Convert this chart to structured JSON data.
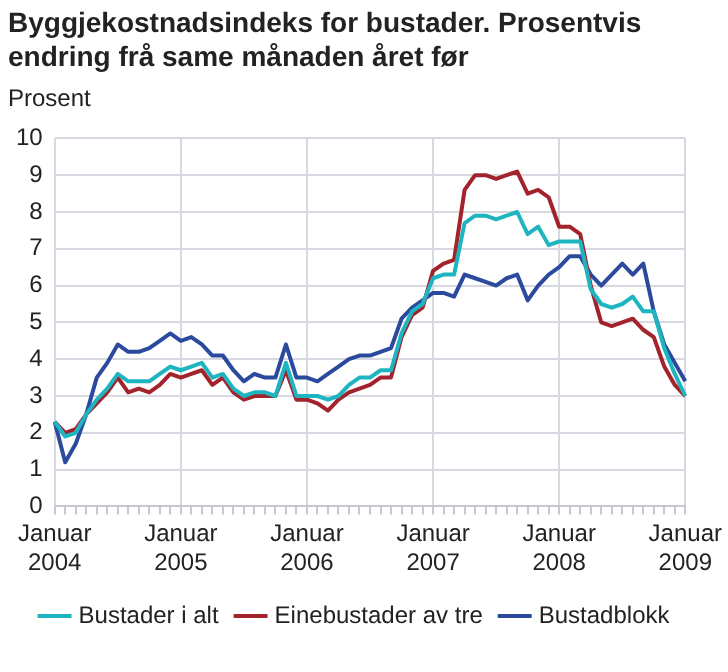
{
  "chart_data": {
    "type": "line",
    "title": "Byggjekostnadsindeks for bustader. Prosentvis endring frå same månaden året før",
    "ylabel": "Prosent",
    "categories": [
      "Januar 2004",
      null,
      null,
      null,
      null,
      null,
      null,
      null,
      null,
      null,
      null,
      null,
      "Januar 2005",
      null,
      null,
      null,
      null,
      null,
      null,
      null,
      null,
      null,
      null,
      null,
      "Januar 2006",
      null,
      null,
      null,
      null,
      null,
      null,
      null,
      null,
      null,
      null,
      null,
      "Januar 2007",
      null,
      null,
      null,
      null,
      null,
      null,
      null,
      null,
      null,
      null,
      null,
      "Januar 2008",
      null,
      null,
      null,
      null,
      null,
      null,
      null,
      null,
      null,
      null,
      null,
      "Januar 2009"
    ],
    "series": [
      {
        "name": "Bustader i alt",
        "color": "#1fb5c0",
        "values": [
          2.3,
          1.9,
          2.0,
          2.5,
          2.9,
          3.2,
          3.6,
          3.4,
          3.4,
          3.4,
          3.6,
          3.8,
          3.7,
          3.8,
          3.9,
          3.5,
          3.6,
          3.2,
          3.0,
          3.1,
          3.1,
          3.0,
          3.9,
          3.0,
          3.0,
          3.0,
          2.9,
          3.0,
          3.3,
          3.5,
          3.5,
          3.7,
          3.7,
          4.7,
          5.3,
          5.5,
          6.2,
          6.3,
          6.3,
          7.7,
          7.9,
          7.9,
          7.8,
          7.9,
          8.0,
          7.4,
          7.6,
          7.1,
          7.2,
          7.2,
          7.2,
          5.9,
          5.5,
          5.4,
          5.5,
          5.7,
          5.3,
          5.3,
          4.3,
          3.6,
          3.0
        ]
      },
      {
        "name": "Einebustader av tre",
        "color": "#a3232c",
        "values": [
          2.3,
          2.0,
          2.1,
          2.5,
          2.8,
          3.1,
          3.5,
          3.1,
          3.2,
          3.1,
          3.3,
          3.6,
          3.5,
          3.6,
          3.7,
          3.3,
          3.5,
          3.1,
          2.9,
          3.0,
          3.0,
          3.0,
          3.7,
          2.9,
          2.9,
          2.8,
          2.6,
          2.9,
          3.1,
          3.2,
          3.3,
          3.5,
          3.5,
          4.6,
          5.2,
          5.4,
          6.4,
          6.6,
          6.7,
          8.6,
          9.0,
          9.0,
          8.9,
          9.0,
          9.1,
          8.5,
          8.6,
          8.4,
          7.6,
          7.6,
          7.4,
          6.0,
          5.0,
          4.9,
          5.0,
          5.1,
          4.8,
          4.6,
          3.8,
          3.3,
          3.0
        ]
      },
      {
        "name": "Bustadblokk",
        "color": "#2b4a9e",
        "values": [
          2.3,
          1.2,
          1.7,
          2.5,
          3.5,
          3.9,
          4.4,
          4.2,
          4.2,
          4.3,
          4.5,
          4.7,
          4.5,
          4.6,
          4.4,
          4.1,
          4.1,
          3.7,
          3.4,
          3.6,
          3.5,
          3.5,
          4.4,
          3.5,
          3.5,
          3.4,
          3.6,
          3.8,
          4.0,
          4.1,
          4.1,
          4.2,
          4.3,
          5.1,
          5.4,
          5.6,
          5.8,
          5.8,
          5.7,
          6.3,
          6.2,
          6.1,
          6.0,
          6.2,
          6.3,
          5.6,
          6.0,
          6.3,
          6.5,
          6.8,
          6.8,
          6.3,
          6.0,
          6.3,
          6.6,
          6.3,
          6.6,
          5.3,
          4.4,
          3.9,
          3.4
        ]
      }
    ],
    "ylim": [
      0,
      10
    ],
    "yticks": [
      0,
      1,
      2,
      3,
      4,
      5,
      6,
      7,
      8,
      9,
      10
    ],
    "grid": true,
    "legend": "bottom",
    "marker": "none",
    "line_style": "solid"
  }
}
